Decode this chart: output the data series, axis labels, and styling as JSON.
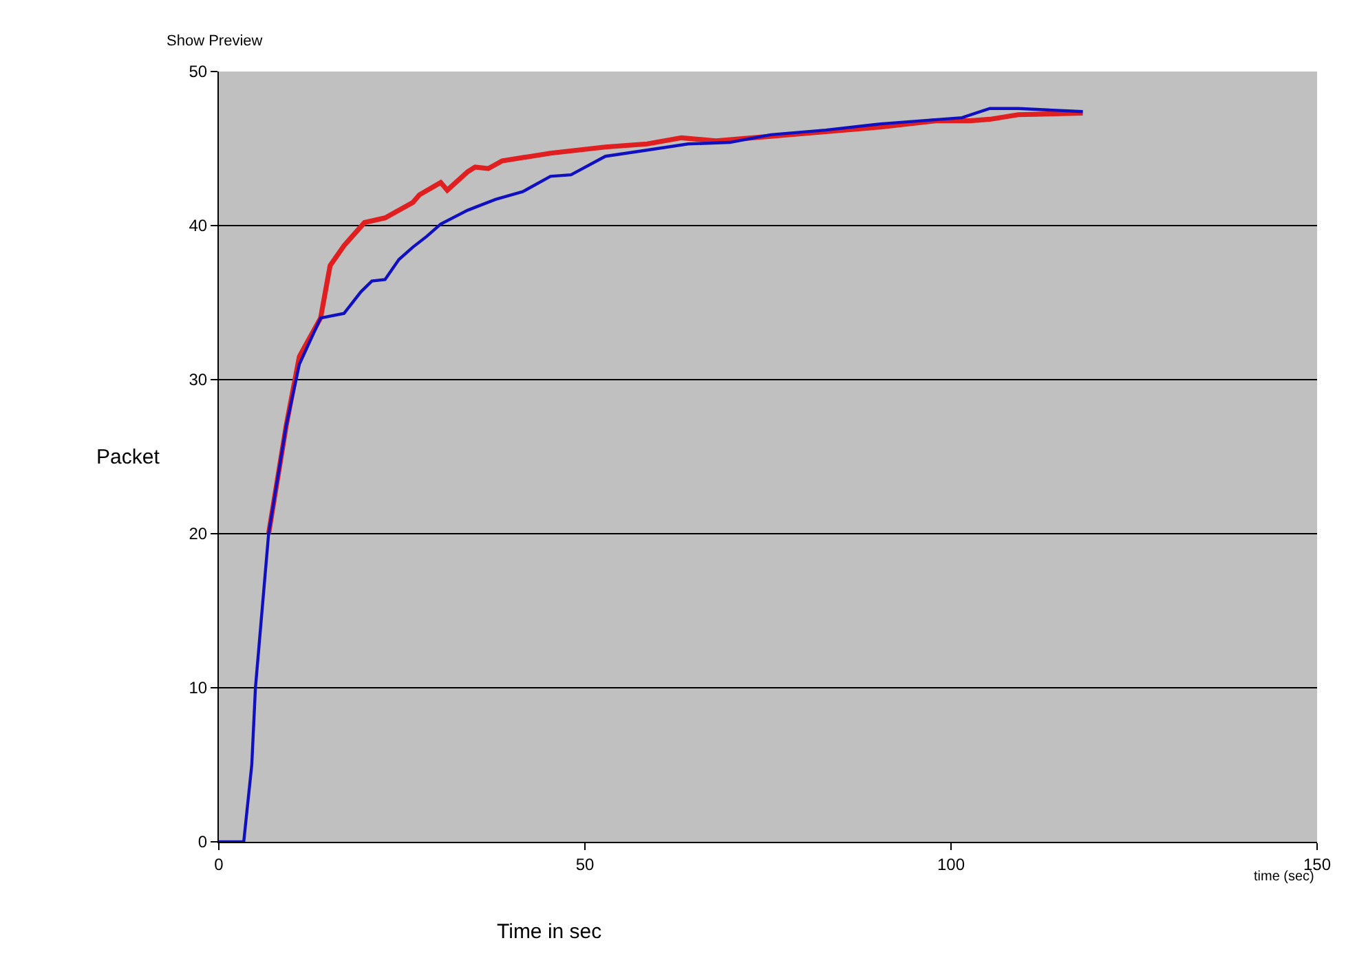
{
  "chart_data": {
    "type": "line",
    "xlabel": "time (sec)",
    "ylabel": "Packet",
    "annotations": [
      "Show Preview",
      "Time in sec"
    ],
    "xlim": [
      0,
      150
    ],
    "xticks": [
      0,
      50,
      100,
      150
    ],
    "ylim": [
      0,
      50
    ],
    "yticks": [
      0,
      10,
      20,
      30,
      40,
      50
    ],
    "grid": "y",
    "marker": "none",
    "line_style": "solid",
    "series": [
      {
        "color": "#e02020",
        "x": [
          6.8,
          9.2,
          11,
          13.9,
          15.2,
          17.1,
          19.9,
          22.7,
          26.5,
          27.4,
          30.3,
          31.2,
          34,
          35,
          36.8,
          38.7,
          45.3,
          52.8,
          58.5,
          63.2,
          67.9,
          75.4,
          82.9,
          90.4,
          97.9,
          102.6,
          105.3,
          109.2,
          118
        ],
        "values": [
          20,
          27,
          31.5,
          34,
          37.4,
          38.7,
          40.2,
          40.5,
          41.5,
          42,
          42.8,
          42.3,
          43.5,
          43.8,
          43.7,
          44.2,
          44.7,
          45.1,
          45.3,
          45.7,
          45.5,
          45.8,
          46.1,
          46.4,
          46.8,
          46.8,
          46.9,
          47.2,
          47.3
        ]
      },
      {
        "color": "#1010c0",
        "x": [
          0,
          3.4,
          4.5,
          5,
          6.8,
          9.2,
          11,
          13.9,
          17.1,
          19.4,
          20.9,
          22.7,
          24.6,
          26.5,
          28.4,
          30.3,
          34,
          37.8,
          41.5,
          45.3,
          48.1,
          52.8,
          58.5,
          64.1,
          69.8,
          75.4,
          82.9,
          90.4,
          101.5,
          105.3,
          109.2,
          118
        ],
        "values": [
          0,
          0,
          5,
          10,
          20,
          27,
          31,
          34,
          34.3,
          35.7,
          36.4,
          36.5,
          37.8,
          38.6,
          39.3,
          40.1,
          41,
          41.7,
          42.2,
          43.2,
          43.3,
          44.5,
          44.9,
          45.3,
          45.4,
          45.9,
          46.2,
          46.6,
          47,
          47.6,
          47.6,
          47.4
        ]
      }
    ]
  }
}
